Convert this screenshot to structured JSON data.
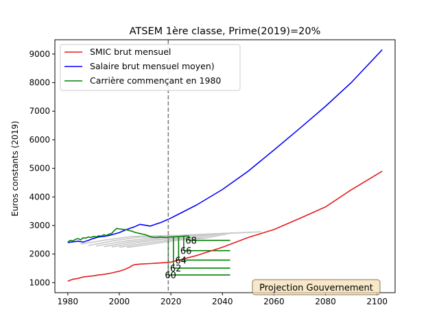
{
  "chart_data": {
    "type": "line",
    "title": "ATSEM 1ère classe, Prime(2019)=20%",
    "xlabel": "",
    "ylabel": "Euros constants (2019)",
    "xlim": [
      1975,
      2107
    ],
    "ylim": [
      650,
      9500
    ],
    "xticks": [
      1980,
      2000,
      2020,
      2040,
      2060,
      2080,
      2100
    ],
    "yticks": [
      1000,
      2000,
      3000,
      4000,
      5000,
      6000,
      7000,
      8000,
      9000
    ],
    "grid": false,
    "legend_position": "upper-left",
    "annotation_box": "Projection Gouvernement",
    "vline": {
      "x": 2019,
      "style": "dashed",
      "color": "#808080"
    },
    "colors": {
      "smic": "#e41a1c",
      "salaire": "#0000ff",
      "carriere": "#008000",
      "gray": "#c8c8c8",
      "vline": "#808080",
      "box_fill": "#f5deb3",
      "box_edge": "#8b7355"
    },
    "series": [
      {
        "name": "SMIC brut mensuel",
        "key": "smic",
        "points": [
          [
            1980,
            1050
          ],
          [
            1982,
            1120
          ],
          [
            1984,
            1150
          ],
          [
            1986,
            1200
          ],
          [
            1988,
            1220
          ],
          [
            1990,
            1240
          ],
          [
            1992,
            1270
          ],
          [
            1994,
            1290
          ],
          [
            1996,
            1320
          ],
          [
            1998,
            1360
          ],
          [
            2000,
            1400
          ],
          [
            2002,
            1460
          ],
          [
            2004,
            1540
          ],
          [
            2005,
            1600
          ],
          [
            2006,
            1630
          ],
          [
            2008,
            1650
          ],
          [
            2010,
            1660
          ],
          [
            2012,
            1670
          ],
          [
            2014,
            1680
          ],
          [
            2016,
            1690
          ],
          [
            2018,
            1700
          ],
          [
            2020,
            1720
          ],
          [
            2030,
            1950
          ],
          [
            2040,
            2240
          ],
          [
            2050,
            2580
          ],
          [
            2060,
            2860
          ],
          [
            2070,
            3250
          ],
          [
            2080,
            3650
          ],
          [
            2090,
            4250
          ],
          [
            2102,
            4900
          ]
        ]
      },
      {
        "name": "Salaire brut mensuel moyen)",
        "key": "salaire",
        "points": [
          [
            1980,
            2400
          ],
          [
            1982,
            2430
          ],
          [
            1984,
            2450
          ],
          [
            1986,
            2420
          ],
          [
            1988,
            2480
          ],
          [
            1990,
            2550
          ],
          [
            1992,
            2600
          ],
          [
            1994,
            2620
          ],
          [
            1996,
            2650
          ],
          [
            1998,
            2700
          ],
          [
            2000,
            2750
          ],
          [
            2002,
            2830
          ],
          [
            2004,
            2900
          ],
          [
            2006,
            2960
          ],
          [
            2008,
            3040
          ],
          [
            2010,
            3010
          ],
          [
            2012,
            2980
          ],
          [
            2014,
            3040
          ],
          [
            2016,
            3100
          ],
          [
            2018,
            3180
          ],
          [
            2020,
            3260
          ],
          [
            2030,
            3720
          ],
          [
            2040,
            4260
          ],
          [
            2050,
            4900
          ],
          [
            2060,
            5640
          ],
          [
            2070,
            6400
          ],
          [
            2080,
            7170
          ],
          [
            2090,
            8000
          ],
          [
            2102,
            9150
          ]
        ]
      },
      {
        "name": "Carrière commençant en 1980",
        "key": "carriere",
        "points": [
          [
            1980,
            2420
          ],
          [
            1981,
            2480
          ],
          [
            1982,
            2460
          ],
          [
            1983,
            2520
          ],
          [
            1984,
            2540
          ],
          [
            1985,
            2500
          ],
          [
            1986,
            2570
          ],
          [
            1987,
            2560
          ],
          [
            1988,
            2600
          ],
          [
            1989,
            2580
          ],
          [
            1990,
            2620
          ],
          [
            1991,
            2600
          ],
          [
            1992,
            2640
          ],
          [
            1993,
            2630
          ],
          [
            1994,
            2680
          ],
          [
            1995,
            2650
          ],
          [
            1996,
            2700
          ],
          [
            1997,
            2720
          ],
          [
            1998,
            2820
          ],
          [
            1999,
            2900
          ],
          [
            2000,
            2880
          ],
          [
            2001,
            2870
          ],
          [
            2002,
            2860
          ],
          [
            2003,
            2850
          ],
          [
            2004,
            2820
          ],
          [
            2005,
            2800
          ],
          [
            2006,
            2760
          ],
          [
            2007,
            2740
          ],
          [
            2008,
            2720
          ],
          [
            2009,
            2700
          ],
          [
            2010,
            2680
          ],
          [
            2011,
            2650
          ],
          [
            2012,
            2610
          ],
          [
            2013,
            2590
          ],
          [
            2014,
            2580
          ],
          [
            2015,
            2590
          ],
          [
            2016,
            2600
          ],
          [
            2017,
            2590
          ],
          [
            2018,
            2580
          ],
          [
            2019,
            2590
          ],
          [
            2020,
            2600
          ],
          [
            2021,
            2600
          ],
          [
            2022,
            2610
          ],
          [
            2023,
            2610
          ],
          [
            2024,
            2620
          ],
          [
            2025,
            2630
          ],
          [
            2026,
            2630
          ],
          [
            2027,
            2640
          ]
        ]
      }
    ],
    "gray_series": [
      [
        [
          1985,
          2350
        ],
        [
          1995,
          2500
        ],
        [
          2005,
          2620
        ],
        [
          2015,
          2640
        ],
        [
          2025,
          2660
        ],
        [
          2032,
          2680
        ]
      ],
      [
        [
          1988,
          2300
        ],
        [
          1998,
          2470
        ],
        [
          2008,
          2600
        ],
        [
          2018,
          2620
        ],
        [
          2028,
          2680
        ],
        [
          2036,
          2700
        ]
      ],
      [
        [
          1991,
          2280
        ],
        [
          2001,
          2440
        ],
        [
          2011,
          2560
        ],
        [
          2021,
          2600
        ],
        [
          2031,
          2690
        ],
        [
          2040,
          2720
        ]
      ],
      [
        [
          1994,
          2260
        ],
        [
          2004,
          2420
        ],
        [
          2014,
          2530
        ],
        [
          2024,
          2580
        ],
        [
          2034,
          2700
        ],
        [
          2044,
          2740
        ]
      ],
      [
        [
          1997,
          2250
        ],
        [
          2007,
          2400
        ],
        [
          2017,
          2520
        ],
        [
          2027,
          2570
        ],
        [
          2037,
          2710
        ],
        [
          2048,
          2750
        ]
      ],
      [
        [
          2000,
          2240
        ],
        [
          2010,
          2380
        ],
        [
          2020,
          2500
        ],
        [
          2030,
          2560
        ],
        [
          2040,
          2720
        ],
        [
          2052,
          2770
        ]
      ],
      [
        [
          2003,
          2230
        ],
        [
          2013,
          2360
        ],
        [
          2023,
          2490
        ],
        [
          2033,
          2550
        ],
        [
          2043,
          2730
        ],
        [
          2055,
          2780
        ]
      ]
    ],
    "departure_steps": [
      {
        "age": "60",
        "year": 2019,
        "value": 1270
      },
      {
        "age": "62",
        "year": 2021,
        "value": 1510
      },
      {
        "age": "64",
        "year": 2023,
        "value": 1790
      },
      {
        "age": "66",
        "year": 2025,
        "value": 2120
      },
      {
        "age": "68",
        "year": 2027,
        "value": 2480
      }
    ],
    "departure_end_year": 2043
  }
}
